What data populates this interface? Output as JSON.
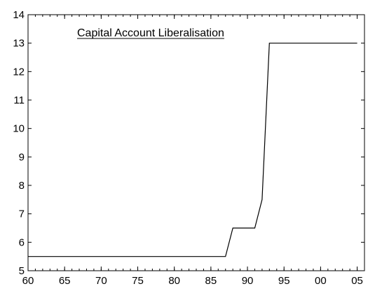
{
  "chart_data": {
    "type": "line",
    "title": "Capital Account Liberalisation",
    "xlabel": "",
    "ylabel": "",
    "xlim": [
      1960,
      2006
    ],
    "ylim": [
      5,
      14
    ],
    "grid": false,
    "legend": "none",
    "x_ticks": [
      {
        "value": 1960,
        "label": "60"
      },
      {
        "value": 1965,
        "label": "65"
      },
      {
        "value": 1970,
        "label": "70"
      },
      {
        "value": 1975,
        "label": "75"
      },
      {
        "value": 1980,
        "label": "80"
      },
      {
        "value": 1985,
        "label": "85"
      },
      {
        "value": 1990,
        "label": "90"
      },
      {
        "value": 1995,
        "label": "95"
      },
      {
        "value": 2000,
        "label": "00"
      },
      {
        "value": 2005,
        "label": "05"
      }
    ],
    "y_ticks": [
      5,
      6,
      7,
      8,
      9,
      10,
      11,
      12,
      13,
      14
    ],
    "series": [
      {
        "color": "#000000",
        "x": [
          1960,
          1961,
          1962,
          1963,
          1964,
          1965,
          1966,
          1967,
          1968,
          1969,
          1970,
          1971,
          1972,
          1973,
          1974,
          1975,
          1976,
          1977,
          1978,
          1979,
          1980,
          1981,
          1982,
          1983,
          1984,
          1985,
          1986,
          1987,
          1988,
          1989,
          1990,
          1991,
          1992,
          1993,
          1994,
          1995,
          1996,
          1997,
          1998,
          1999,
          2000,
          2001,
          2002,
          2003,
          2004,
          2005
        ],
        "y": [
          5.5,
          5.5,
          5.5,
          5.5,
          5.5,
          5.5,
          5.5,
          5.5,
          5.5,
          5.5,
          5.5,
          5.5,
          5.5,
          5.5,
          5.5,
          5.5,
          5.5,
          5.5,
          5.5,
          5.5,
          5.5,
          5.5,
          5.5,
          5.5,
          5.5,
          5.5,
          5.5,
          5.5,
          6.5,
          6.5,
          6.5,
          6.5,
          7.5,
          13,
          13,
          13,
          13,
          13,
          13,
          13,
          13,
          13,
          13,
          13,
          13,
          13
        ]
      }
    ]
  }
}
